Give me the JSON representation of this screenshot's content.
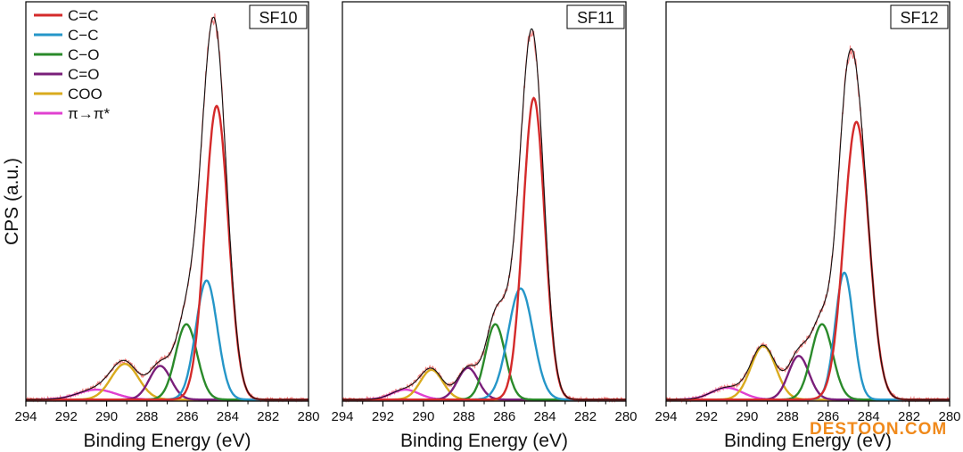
{
  "chart_data": {
    "type": "line",
    "ylabel": "CPS (a.u.)",
    "xlabel": "Binding Energy (eV)",
    "xlim": [
      294,
      280
    ],
    "xticks": [
      "294",
      "292",
      "290",
      "288",
      "286",
      "284",
      "282",
      "280"
    ],
    "legend": [
      {
        "name": "C=C",
        "color": "#d42a2a"
      },
      {
        "name": "C−C",
        "color": "#2596c8"
      },
      {
        "name": "C−O",
        "color": "#2a8a2a"
      },
      {
        "name": "C=O",
        "color": "#7a1f7a"
      },
      {
        "name": "COO",
        "color": "#d9ab1e"
      },
      {
        "name": "π→π*",
        "color": "#e040d0"
      }
    ],
    "envelope_color": "#111111",
    "raw_color": "#f08080",
    "panels": [
      {
        "title": "SF10",
        "peaks": [
          {
            "name": "C=C",
            "center": 284.55,
            "height": 0.74,
            "fwhm": 1.35
          },
          {
            "name": "C−C",
            "center": 285.05,
            "height": 0.3,
            "fwhm": 1.25
          },
          {
            "name": "C−O",
            "center": 286.05,
            "height": 0.19,
            "fwhm": 1.25
          },
          {
            "name": "C=O",
            "center": 287.35,
            "height": 0.085,
            "fwhm": 1.25
          },
          {
            "name": "COO",
            "center": 289.1,
            "height": 0.09,
            "fwhm": 1.6
          },
          {
            "name": "π→π*",
            "center": 290.5,
            "height": 0.025,
            "fwhm": 2.2
          }
        ]
      },
      {
        "title": "SF11",
        "peaks": [
          {
            "name": "C=C",
            "center": 284.55,
            "height": 0.76,
            "fwhm": 1.25
          },
          {
            "name": "C−C",
            "center": 285.2,
            "height": 0.28,
            "fwhm": 1.45
          },
          {
            "name": "C−O",
            "center": 286.45,
            "height": 0.19,
            "fwhm": 1.15
          },
          {
            "name": "C=O",
            "center": 287.8,
            "height": 0.08,
            "fwhm": 1.2
          },
          {
            "name": "COO",
            "center": 289.6,
            "height": 0.075,
            "fwhm": 1.3
          },
          {
            "name": "π→π*",
            "center": 290.9,
            "height": 0.025,
            "fwhm": 1.6
          }
        ]
      },
      {
        "title": "SF12",
        "peaks": [
          {
            "name": "C=C",
            "center": 284.6,
            "height": 0.7,
            "fwhm": 1.45
          },
          {
            "name": "C−C",
            "center": 285.2,
            "height": 0.32,
            "fwhm": 1.05
          },
          {
            "name": "C−O",
            "center": 286.3,
            "height": 0.19,
            "fwhm": 1.25
          },
          {
            "name": "C=O",
            "center": 287.45,
            "height": 0.11,
            "fwhm": 1.2
          },
          {
            "name": "COO",
            "center": 289.2,
            "height": 0.135,
            "fwhm": 1.45
          },
          {
            "name": "π→π*",
            "center": 291.0,
            "height": 0.03,
            "fwhm": 1.8
          }
        ]
      }
    ]
  },
  "watermark": "DESTOON.COM"
}
